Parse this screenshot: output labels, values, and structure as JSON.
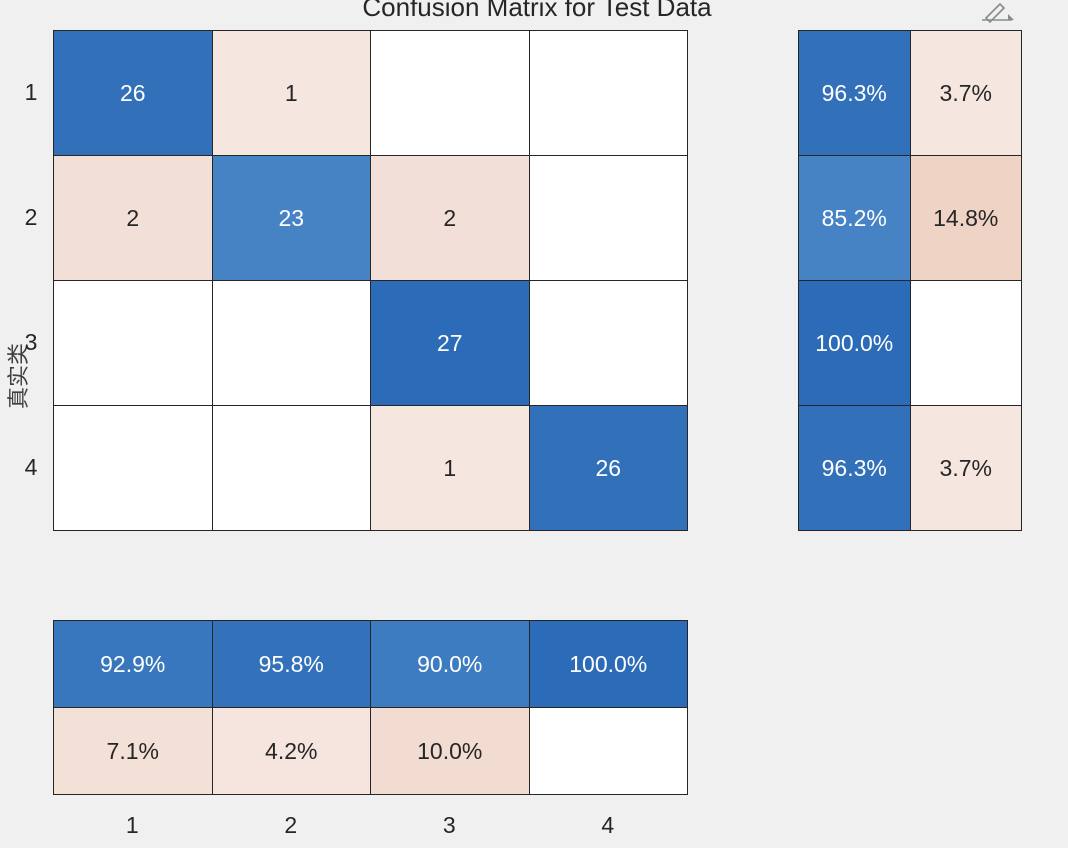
{
  "chart_data": {
    "type": "heatmap",
    "title": "Confusion Matrix for Test Data",
    "ylabel": "真实类",
    "xlabel": "",
    "classes": [
      "1",
      "2",
      "3",
      "4"
    ],
    "matrix": [
      [
        26,
        1,
        null,
        null
      ],
      [
        2,
        23,
        2,
        null
      ],
      [
        null,
        null,
        27,
        null
      ],
      [
        null,
        null,
        1,
        26
      ]
    ],
    "row_summary": {
      "correct": [
        "96.3%",
        "85.2%",
        "100.0%",
        "96.3%"
      ],
      "incorrect": [
        "3.7%",
        "14.8%",
        "",
        "3.7%"
      ]
    },
    "column_summary": {
      "correct": [
        "92.9%",
        "95.8%",
        "90.0%",
        "100.0%"
      ],
      "incorrect": [
        "7.1%",
        "4.2%",
        "10.0%",
        ""
      ]
    },
    "colors": {
      "correct_high": "#2c6bb7",
      "incorrect_low": "#f7ece8",
      "background": "#f0f0f0",
      "border": "#262626"
    }
  },
  "toolbar": {
    "icon": "edit-plot-icon"
  }
}
